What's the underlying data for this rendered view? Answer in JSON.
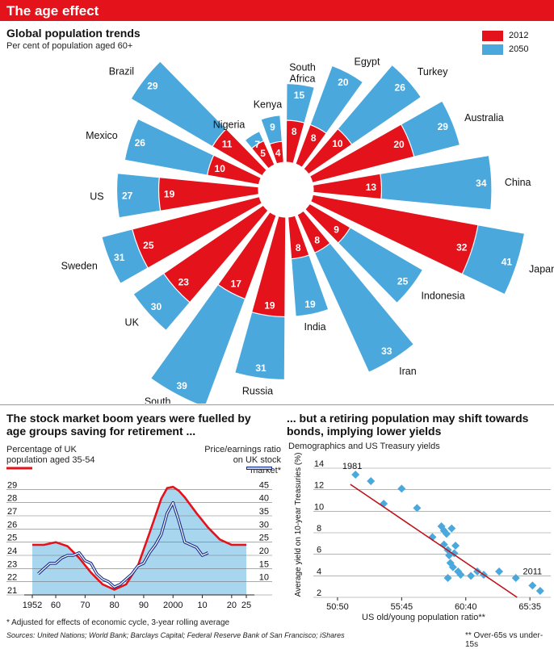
{
  "header": {
    "title": "The age effect"
  },
  "radial": {
    "title": "Global population trends",
    "subtitle": "Per cent of population aged 60+",
    "legend": [
      {
        "label": "2012",
        "color": "#e3121b"
      },
      {
        "label": "2050",
        "color": "#4aa8dd"
      }
    ]
  },
  "left": {
    "title": "The stock market boom years were fuelled by age groups saving for retirement ...",
    "y_left_label": "Percentage of UK population aged 35-54",
    "y_right_label": "Price/earnings ratio on UK stock market*",
    "footnote": "* Adjusted for effects of economic cycle, 3-year rolling average"
  },
  "right": {
    "title": "... but a retiring population may shift towards bonds, implying lower yields",
    "subtitle": "Demographics and US Treasury yields",
    "y_label": "Average yield on 10-year Treasuries (%)",
    "x_label": "US old/young population ratio**",
    "label_start": "1981",
    "label_end": "2011",
    "footnote": "** Over-65s vs under-15s"
  },
  "sources": "Sources: United Nations; World Bank; Barclays Capital; Federal Reserve Bank of San Francisco; iShares",
  "chart_data": [
    {
      "type": "bar",
      "subtype": "radial",
      "title": "Global population trends",
      "ylabel": "Per cent of population aged 60+",
      "categories": [
        "South Africa",
        "Egypt",
        "Turkey",
        "Australia",
        "China",
        "Japan",
        "Indonesia",
        "Iran",
        "India",
        "Russia",
        "South Korea",
        "UK",
        "Sweden",
        "US",
        "Mexico",
        "Brazil",
        "Nigeria",
        "Kenya"
      ],
      "series": [
        {
          "name": "2012",
          "color": "#e3121b",
          "values": [
            8,
            8,
            10,
            20,
            13,
            32,
            9,
            8,
            8,
            19,
            17,
            23,
            25,
            19,
            10,
            11,
            5,
            4
          ]
        },
        {
          "name": "2050",
          "color": "#4aa8dd",
          "values": [
            15,
            20,
            26,
            29,
            34,
            41,
            25,
            33,
            19,
            31,
            39,
            30,
            31,
            27,
            26,
            29,
            7,
            9
          ]
        }
      ]
    },
    {
      "type": "area",
      "title": "The stock market boom years were fuelled by age groups saving for retirement ...",
      "x_ticks": [
        1952,
        1960,
        1970,
        1980,
        1990,
        2000,
        2010,
        2020,
        2025
      ],
      "x_tick_labels": [
        "1952",
        "60",
        "70",
        "80",
        "90",
        "2000",
        "10",
        "20",
        "25"
      ],
      "xlim": [
        1952,
        2025
      ],
      "y_left_ticks": [
        21,
        22,
        23,
        24,
        25,
        26,
        27,
        28,
        29
      ],
      "ylim_left": [
        21,
        30
      ],
      "y_right_ticks": [
        10,
        15,
        20,
        25,
        30,
        35,
        40,
        45
      ],
      "ylim_right": [
        5,
        50
      ],
      "series": [
        {
          "name": "Percentage of UK population aged 35-54",
          "axis": "left",
          "color": "#e3121b",
          "x": [
            1952,
            1956,
            1960,
            1964,
            1968,
            1972,
            1976,
            1980,
            1984,
            1988,
            1992,
            1996,
            1998,
            2000,
            2002,
            2004,
            2008,
            2012,
            2016,
            2020,
            2025
          ],
          "y": [
            24.8,
            24.8,
            25.0,
            24.7,
            23.8,
            22.7,
            21.8,
            21.4,
            21.8,
            23.2,
            25.7,
            28.3,
            29.1,
            29.2,
            28.9,
            28.4,
            27.2,
            26.1,
            25.2,
            24.8,
            24.8
          ]
        },
        {
          "name": "Price/earnings ratio on UK stock market*",
          "axis": "right",
          "color": "#1a2f8c",
          "x": [
            1954,
            1956,
            1958,
            1960,
            1962,
            1964,
            1966,
            1968,
            1970,
            1972,
            1974,
            1976,
            1978,
            1980,
            1982,
            1984,
            1986,
            1988,
            1990,
            1992,
            1994,
            1996,
            1998,
            2000,
            2002,
            2004,
            2006,
            2008,
            2010,
            2012
          ],
          "y": [
            13,
            15,
            17,
            17,
            19,
            20,
            20,
            21,
            18,
            17,
            13,
            11,
            10,
            8,
            9,
            11,
            13,
            16,
            17,
            21,
            24,
            28,
            36,
            40,
            33,
            25,
            24,
            23,
            20,
            21
          ]
        }
      ]
    },
    {
      "type": "scatter",
      "title": "... but a retiring population may shift towards bonds, implying lower yields",
      "xlabel": "US old/young population ratio**",
      "ylabel": "Average yield on 10-year Treasuries (%)",
      "x_ticks": [
        50,
        55,
        60,
        65
      ],
      "x_tick_labels": [
        "50:50",
        "55:45",
        "60:40",
        "65:35"
      ],
      "xlim": [
        49.5,
        66.5
      ],
      "y_ticks": [
        2,
        4,
        6,
        8,
        10,
        12,
        14
      ],
      "ylim": [
        2,
        14
      ],
      "points": [
        [
          51.4,
          13.4
        ],
        [
          52.6,
          12.8
        ],
        [
          53.6,
          10.7
        ],
        [
          55.0,
          12.1
        ],
        [
          56.2,
          10.3
        ],
        [
          57.4,
          7.6
        ],
        [
          58.1,
          8.6
        ],
        [
          58.3,
          8.2
        ],
        [
          58.5,
          7.9
        ],
        [
          58.3,
          6.9
        ],
        [
          58.6,
          6.4
        ],
        [
          58.7,
          5.9
        ],
        [
          58.8,
          5.2
        ],
        [
          58.9,
          8.4
        ],
        [
          59.1,
          6.1
        ],
        [
          59.2,
          6.8
        ],
        [
          59.0,
          4.8
        ],
        [
          58.6,
          3.8
        ],
        [
          59.4,
          4.4
        ],
        [
          59.6,
          4.1
        ],
        [
          60.4,
          4.0
        ],
        [
          60.9,
          4.4
        ],
        [
          61.4,
          4.1
        ],
        [
          62.6,
          4.4
        ],
        [
          63.9,
          3.8
        ],
        [
          65.2,
          3.1
        ],
        [
          65.8,
          2.6
        ]
      ],
      "regression": [
        [
          51.0,
          12.5
        ],
        [
          64.0,
          2.0
        ]
      ]
    }
  ]
}
